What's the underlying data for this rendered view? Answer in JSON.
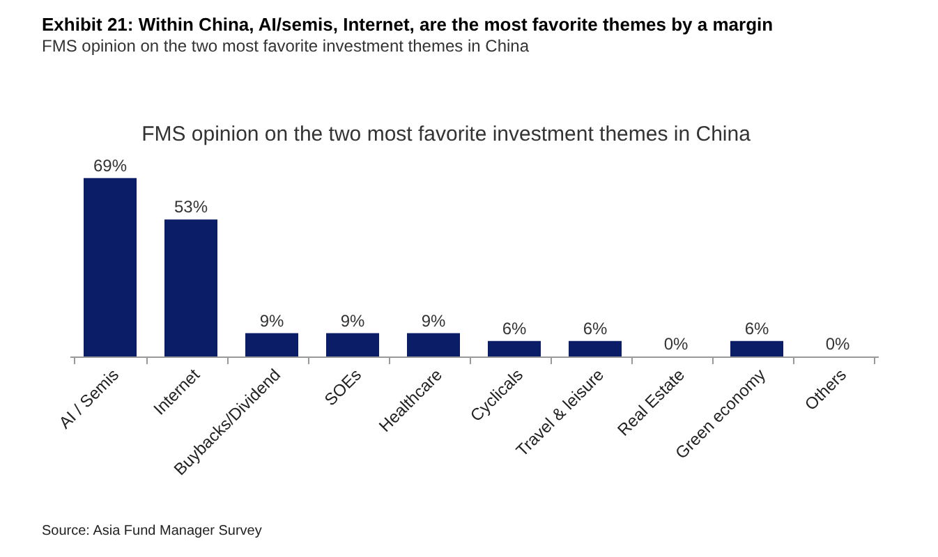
{
  "chart_data": {
    "type": "bar",
    "title": "Exhibit 21: Within China, AI/semis, Internet, are the most favorite themes by a margin",
    "subtitle": "FMS opinion on the two most favorite investment themes in China",
    "annotations": [
      "FMS opinion on the two most favorite investment themes in China",
      "Source: Asia Fund Manager Survey"
    ],
    "categories": [
      "AI / Semis",
      "Internet",
      "Buybacks/Dividend",
      "SOEs",
      "Healthcare",
      "Cyclicals",
      "Travel & leisure",
      "Real Estate",
      "Green economy",
      "Others"
    ],
    "values": [
      69,
      53,
      9,
      9,
      9,
      6,
      6,
      0,
      6,
      0
    ],
    "value_labels": [
      "69%",
      "53%",
      "9%",
      "9%",
      "9%",
      "6%",
      "6%",
      "0%",
      "6%",
      "0%"
    ],
    "color": "#0b1d66",
    "grid": false
  }
}
